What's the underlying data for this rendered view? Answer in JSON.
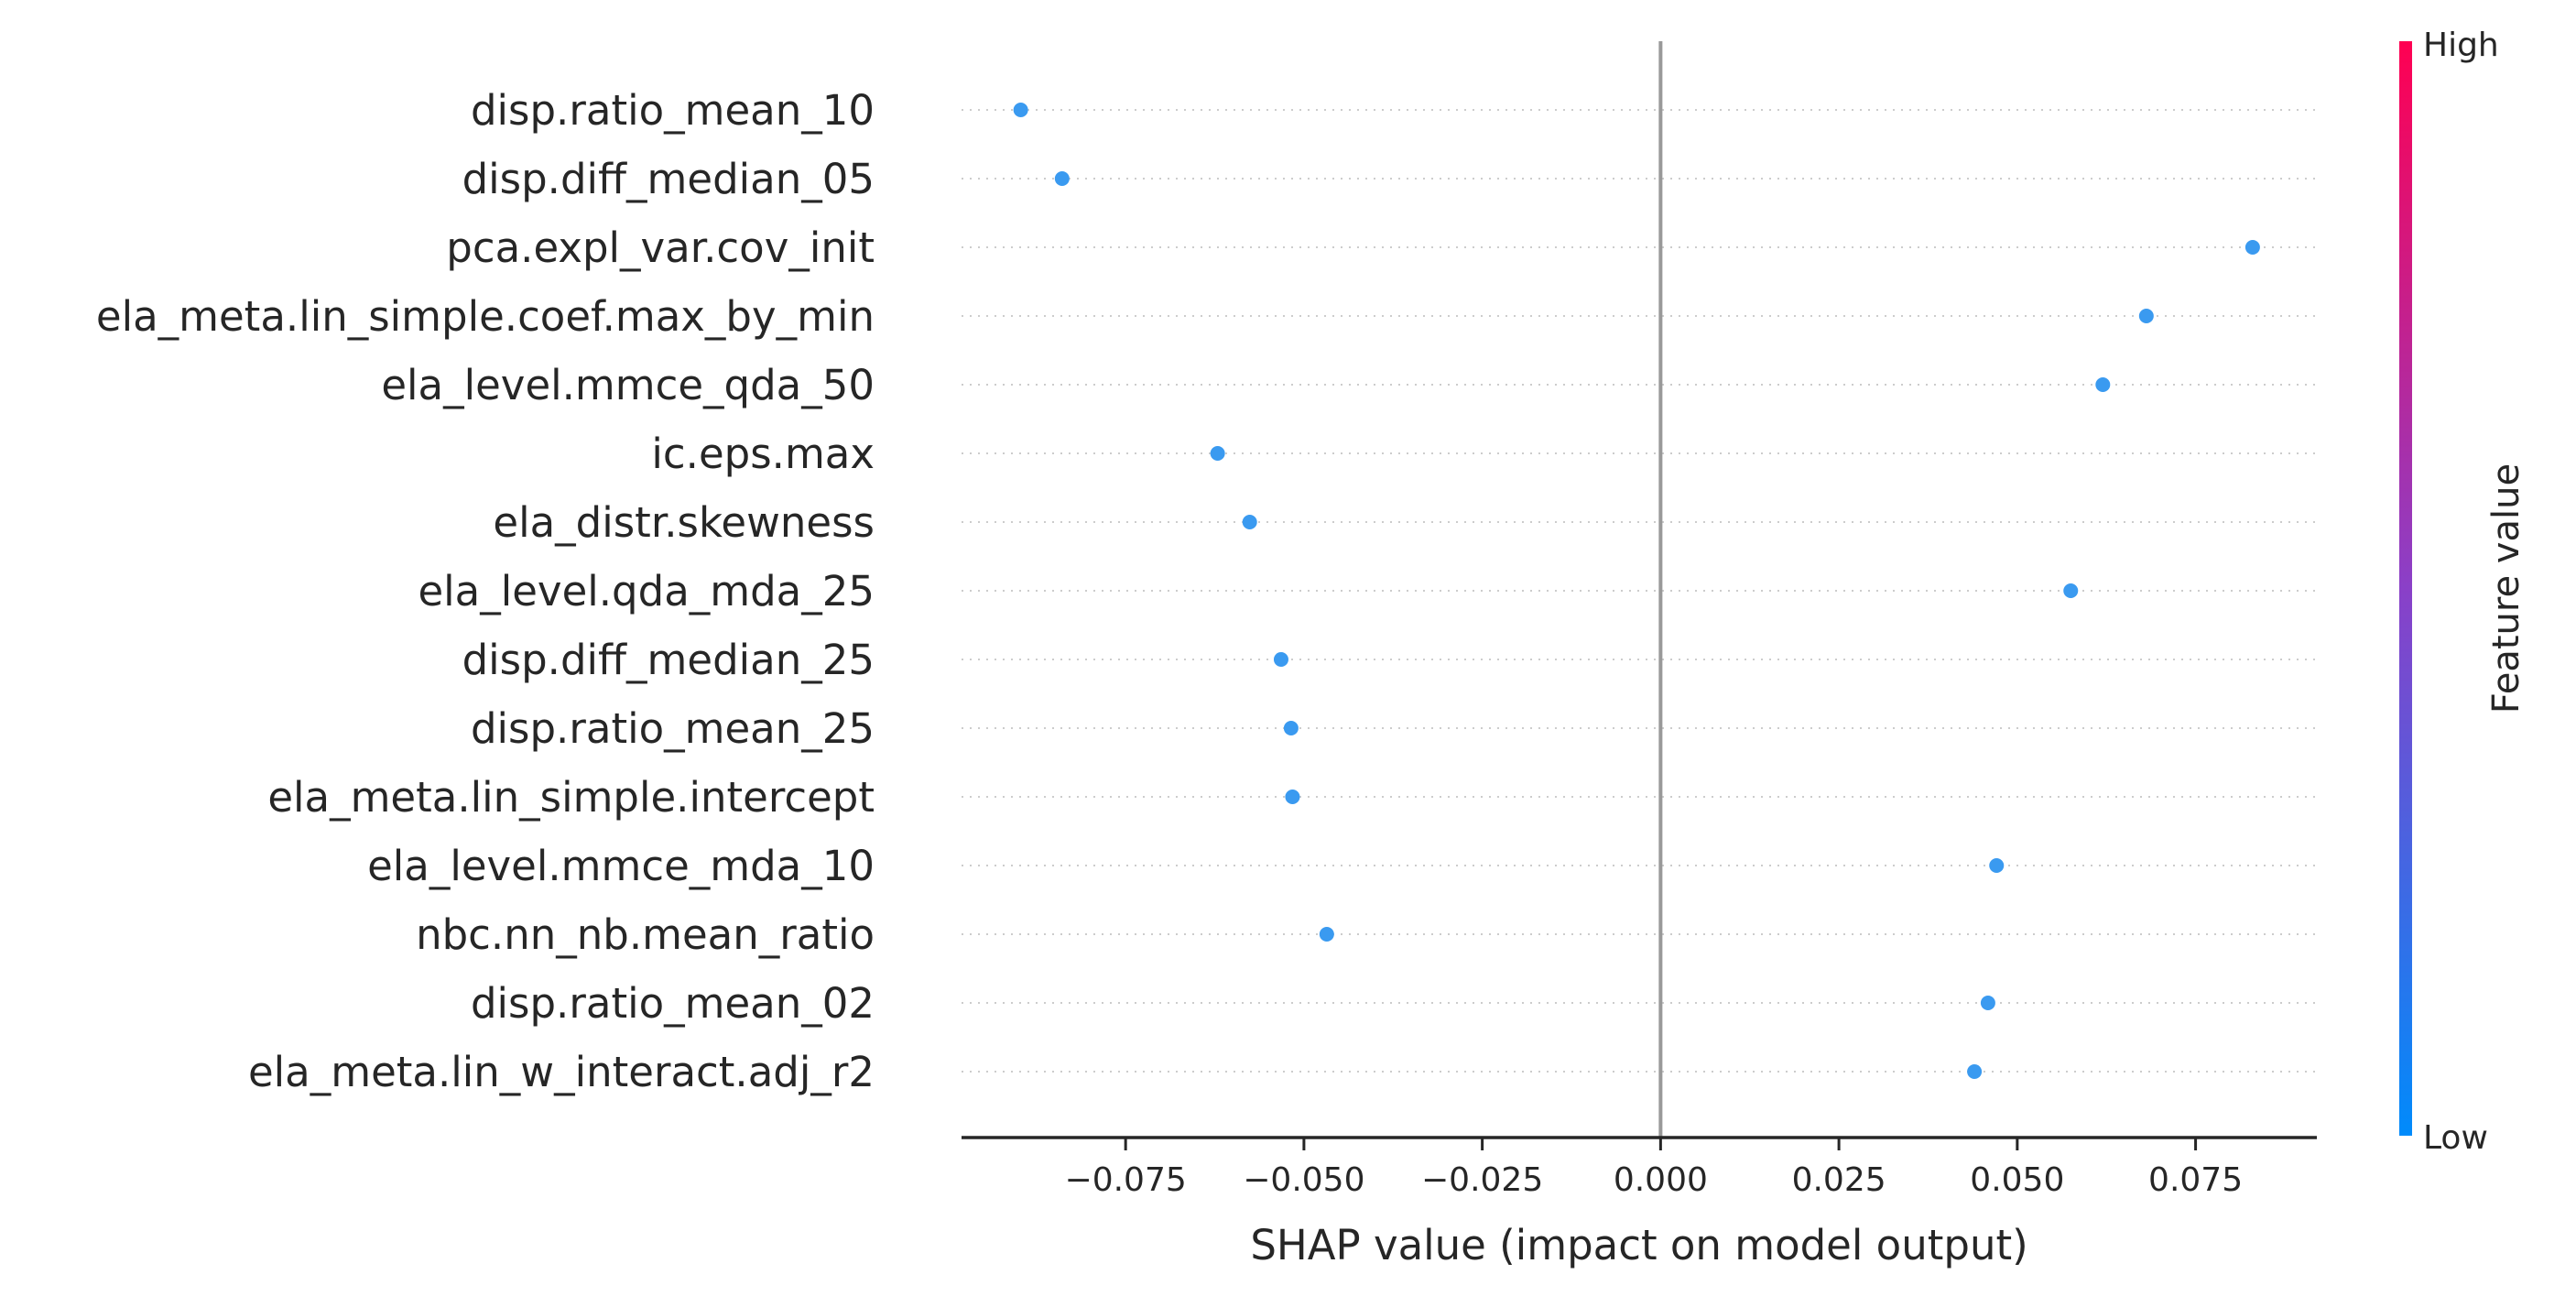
{
  "chart_data": {
    "type": "scatter",
    "subtype": "shap-summary-beeswarm",
    "xlabel": "SHAP value (impact on model output)",
    "xlim": [
      -0.098,
      0.092
    ],
    "x_ticks": [
      -0.075,
      -0.05,
      -0.025,
      0.0,
      0.025,
      0.05,
      0.075
    ],
    "x_tick_labels": [
      "−0.075",
      "−0.050",
      "−0.025",
      "0.000",
      "0.025",
      "0.050",
      "0.075"
    ],
    "zero_line": 0.0,
    "grid": "dotted horizontal per feature",
    "features": [
      {
        "name": "disp.ratio_mean_10",
        "shap": -0.0897
      },
      {
        "name": "disp.diff_median_05",
        "shap": -0.0839
      },
      {
        "name": "pca.expl_var.cov_init",
        "shap": 0.083
      },
      {
        "name": "ela_meta.lin_simple.coef.max_by_min",
        "shap": 0.0681
      },
      {
        "name": "ela_level.mmce_qda_50",
        "shap": 0.062
      },
      {
        "name": "ic.eps.max",
        "shap": -0.0621
      },
      {
        "name": "ela_distr.skewness",
        "shap": -0.0576
      },
      {
        "name": "ela_level.qda_mda_25",
        "shap": 0.0575
      },
      {
        "name": "disp.diff_median_25",
        "shap": -0.0532
      },
      {
        "name": "disp.ratio_mean_25",
        "shap": -0.0518
      },
      {
        "name": "ela_meta.lin_simple.intercept",
        "shap": -0.0516
      },
      {
        "name": "ela_level.mmce_mda_10",
        "shap": 0.0471
      },
      {
        "name": "nbc.nn_nb.mean_ratio",
        "shap": -0.0468
      },
      {
        "name": "disp.ratio_mean_02",
        "shap": 0.0459
      },
      {
        "name": "ela_meta.lin_w_interact.adj_r2",
        "shap": 0.044
      }
    ],
    "point_color": "#3a9af0",
    "colorbar": {
      "title": "Feature value",
      "high_label": "High",
      "low_label": "Low",
      "high_color": "#ff0052",
      "mid_color": "#8a40c8",
      "low_color": "#008bfb"
    }
  }
}
